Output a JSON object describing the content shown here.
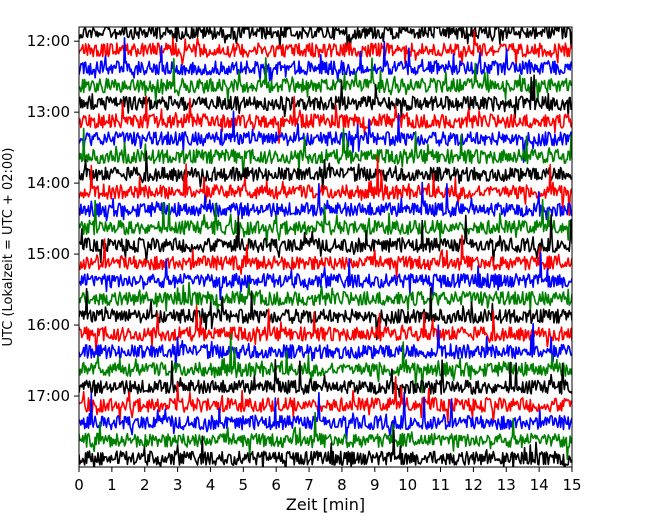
{
  "chart_data": {
    "type": "line",
    "title": "",
    "xlabel": "Zeit  [min]",
    "ylabel": "UTC (Lokalzeit = UTC + 02:00)",
    "xlim": [
      0,
      15
    ],
    "x_ticks": [
      "0",
      "1",
      "2",
      "3",
      "4",
      "5",
      "6",
      "7",
      "8",
      "9",
      "10",
      "11",
      "12",
      "13",
      "14",
      "15"
    ],
    "y_ticks": [
      "12:00",
      "13:00",
      "14:00",
      "15:00",
      "16:00",
      "17:00"
    ],
    "ylim_top": "11:48",
    "ylim_bottom": "18:00",
    "trace_duration_min": 15,
    "first_trace_utc": "11:45",
    "last_trace_utc": "17:45",
    "color_cycle": [
      "#000000",
      "#ff0000",
      "#0000ff",
      "#008000"
    ],
    "grid": false,
    "legend": "none"
  }
}
